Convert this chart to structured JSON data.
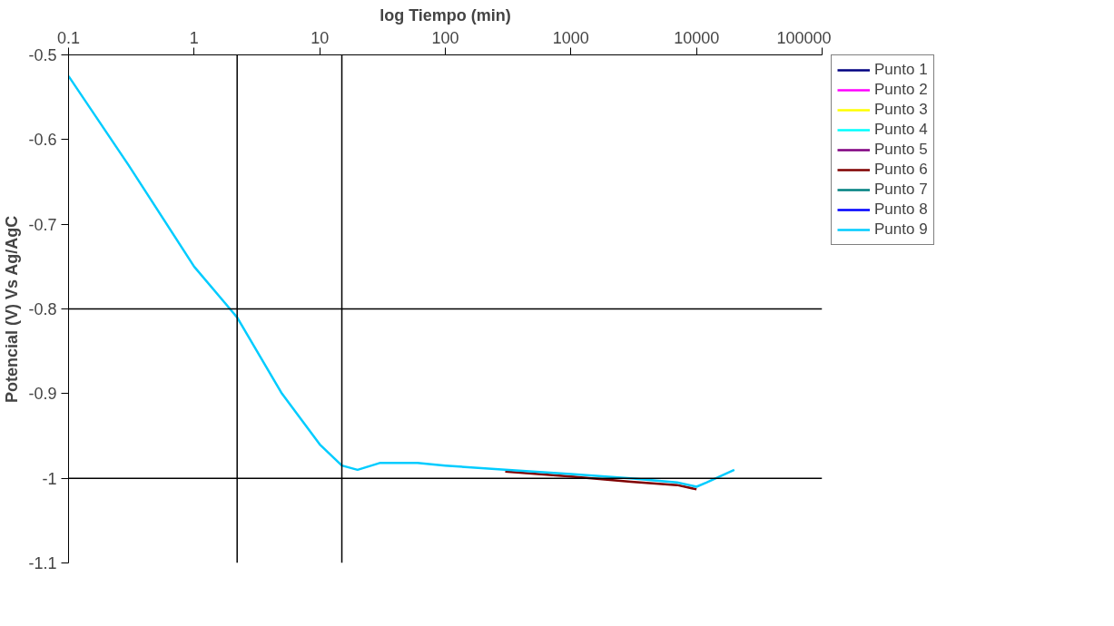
{
  "chart_data": {
    "type": "line",
    "xlabel": "log Tiempo (min)",
    "ylabel": "Potencial (V) Vs Ag/AgC",
    "x": [
      0.1,
      0.3,
      1,
      2.2,
      5,
      10,
      15,
      20,
      30,
      60,
      100,
      300,
      1000,
      3000,
      7000,
      10000,
      12000,
      20000
    ],
    "series": [
      {
        "name": "Punto 1",
        "color": "#000080",
        "values": [
          null,
          null,
          null,
          null,
          null,
          null,
          null,
          null,
          null,
          null,
          null,
          null,
          null,
          null,
          null,
          null,
          null,
          null
        ]
      },
      {
        "name": "Punto 2",
        "color": "#ff00ff",
        "values": [
          null,
          null,
          null,
          null,
          null,
          null,
          null,
          null,
          null,
          null,
          null,
          null,
          null,
          null,
          null,
          null,
          null,
          null
        ]
      },
      {
        "name": "Punto 3",
        "color": "#ffff00",
        "values": [
          null,
          null,
          null,
          null,
          null,
          null,
          null,
          null,
          null,
          null,
          null,
          null,
          null,
          null,
          null,
          null,
          null,
          null
        ]
      },
      {
        "name": "Punto 4",
        "color": "#00ffff",
        "values": [
          null,
          null,
          null,
          null,
          null,
          null,
          null,
          null,
          null,
          null,
          null,
          null,
          null,
          null,
          null,
          null,
          null,
          null
        ]
      },
      {
        "name": "Punto 5",
        "color": "#800080",
        "values": [
          null,
          null,
          null,
          null,
          null,
          null,
          null,
          null,
          null,
          null,
          null,
          null,
          null,
          null,
          null,
          null,
          null,
          null
        ]
      },
      {
        "name": "Punto 6",
        "color": "#800000",
        "values": [
          null,
          null,
          null,
          null,
          null,
          null,
          null,
          null,
          null,
          null,
          null,
          -0.992,
          -0.998,
          -1.004,
          -1.008,
          -1.013,
          null,
          null
        ]
      },
      {
        "name": "Punto 7",
        "color": "#008080",
        "values": [
          null,
          null,
          null,
          null,
          null,
          null,
          null,
          null,
          null,
          null,
          null,
          null,
          null,
          null,
          null,
          null,
          null,
          null
        ]
      },
      {
        "name": "Punto 8",
        "color": "#0000ff",
        "values": [
          null,
          null,
          null,
          null,
          null,
          null,
          null,
          null,
          null,
          null,
          null,
          null,
          null,
          null,
          null,
          null,
          null,
          null
        ]
      },
      {
        "name": "Punto 9",
        "color": "#00ccff",
        "values": [
          -0.525,
          -0.63,
          -0.75,
          -0.81,
          -0.9,
          -0.96,
          -0.985,
          -0.99,
          -0.982,
          -0.982,
          -0.985,
          -0.99,
          -0.995,
          -1.0,
          -1.005,
          -1.01,
          -1.005,
          -0.99
        ]
      }
    ],
    "xlim": [
      0.1,
      100000
    ],
    "xticks": [
      {
        "value": 0.1,
        "label": "0.1"
      },
      1,
      10,
      100,
      1000,
      10000,
      100000
    ],
    "ylim": [
      -1.1,
      -0.5
    ],
    "yticks": [
      -1.1,
      -1,
      -0.9,
      -0.8,
      -0.7,
      -0.6,
      -0.5
    ],
    "ref_lines": [
      {
        "axis": "x",
        "value": 2.2,
        "color": "#000000"
      },
      {
        "axis": "x",
        "value": 15,
        "color": "#000000"
      },
      {
        "axis": "y",
        "value": -0.8,
        "color": "#000000"
      },
      {
        "axis": "y",
        "value": -1,
        "color": "#000000"
      }
    ],
    "log": "x",
    "grid": false,
    "legend": "right",
    "marker": "none",
    "line_style": "solid"
  }
}
